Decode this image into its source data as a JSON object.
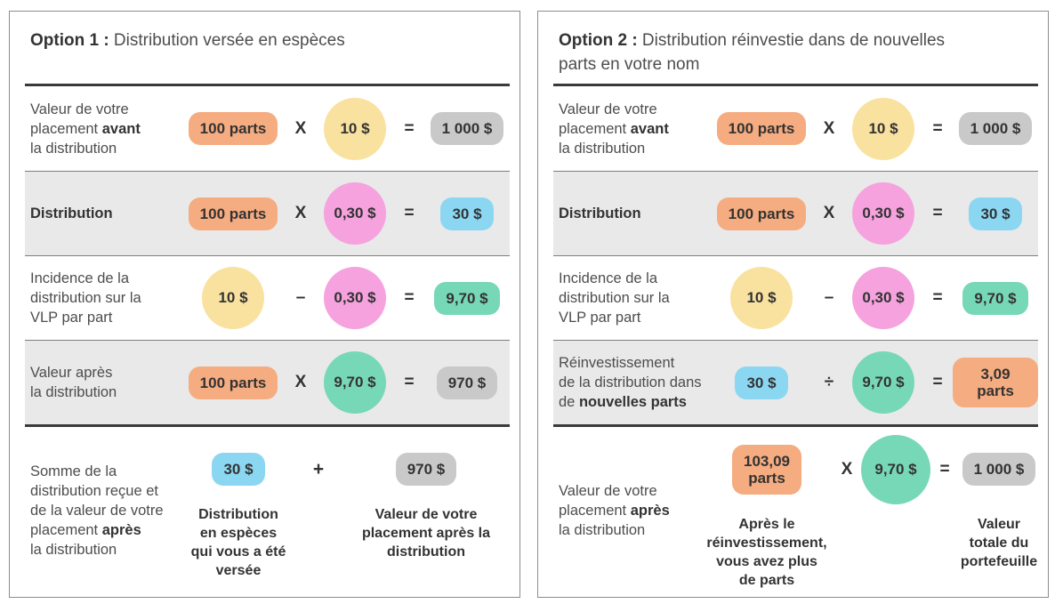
{
  "colors": {
    "units_orange": "#F5AC80",
    "nav_yellow": "#F9E2A0",
    "distribution_pink": "#F5A2DE",
    "cash_blue": "#8BD7F2",
    "new_nav_green": "#77D8B8",
    "total_gray": "#C9C9C9",
    "row_gray_bg": "#E9E9E9",
    "dark_line": "#3A3A3A",
    "panel_border": "#8C8C8C"
  },
  "panels": [
    {
      "title": {
        "bold": "Option 1 :",
        "rest": " Distribution versée en espèces"
      },
      "rows": [
        {
          "label": {
            "pre": "Valeur de votre\nplacement ",
            "bold": "avant",
            "post": "\nla distribution"
          },
          "a": "100 parts",
          "op": "X",
          "b": "10 $",
          "eq": "=",
          "r": "1 000 $"
        },
        {
          "label": {
            "pre": "",
            "bold": "Distribution",
            "post": ""
          },
          "a": "100 parts",
          "op": "X",
          "b": "0,30 $",
          "eq": "=",
          "r": "30 $"
        },
        {
          "label": {
            "pre": "Incidence de la\ndistribution sur la\nVLP par part",
            "bold": "",
            "post": ""
          },
          "a": "10 $",
          "op": "–",
          "b": "0,30 $",
          "eq": "=",
          "r": "9,70 $"
        },
        {
          "label": {
            "pre": "Valeur après\nla distribution",
            "bold": "",
            "post": ""
          },
          "a": "100 parts",
          "op": "X",
          "b": "9,70 $",
          "eq": "=",
          "r": "970 $"
        }
      ],
      "bottom": {
        "label": {
          "pre": "Somme de la\ndistribution reçue et\nde la valeur de votre\nplacement ",
          "bold": "après",
          "post": "\nla distribution"
        },
        "v1": "30 $",
        "cap1": "Distribution\nen espèces\nqui vous a été\nversée",
        "op": "+",
        "v2": "970 $",
        "cap2": "Valeur de votre\nplacement après la\ndistribution"
      }
    },
    {
      "title": {
        "bold": "Option 2 :",
        "rest": " Distribution réinvestie dans de nouvelles\nparts en votre nom"
      },
      "rows": [
        {
          "label": {
            "pre": "Valeur de votre\nplacement ",
            "bold": "avant",
            "post": "\nla distribution"
          },
          "a": "100 parts",
          "op": "X",
          "b": "10 $",
          "eq": "=",
          "r": "1 000 $"
        },
        {
          "label": {
            "pre": "",
            "bold": "Distribution",
            "post": ""
          },
          "a": "100 parts",
          "op": "X",
          "b": "0,30 $",
          "eq": "=",
          "r": "30 $"
        },
        {
          "label": {
            "pre": "Incidence de la\ndistribution sur la\nVLP par part",
            "bold": "",
            "post": ""
          },
          "a": "10 $",
          "op": "–",
          "b": "0,30 $",
          "eq": "=",
          "r": "9,70 $"
        },
        {
          "label": {
            "pre": "Réinvestissement\nde la distribution dans\nde ",
            "bold": "nouvelles parts",
            "post": ""
          },
          "a": "30 $",
          "op": "÷",
          "b": "9,70 $",
          "eq": "=",
          "r": "3,09 parts"
        }
      ],
      "bottom": {
        "label": {
          "pre": "Valeur de votre\nplacement ",
          "bold": "après",
          "post": "\nla distribution"
        },
        "v1": "103,09\nparts",
        "cap1": "Après le\nréinvestissement,\nvous avez plus\nde parts",
        "op": "X",
        "b": "9,70 $",
        "eq": "=",
        "v2": "1 000 $",
        "cap2": "Valeur\ntotale du\nportefeuille"
      }
    }
  ]
}
